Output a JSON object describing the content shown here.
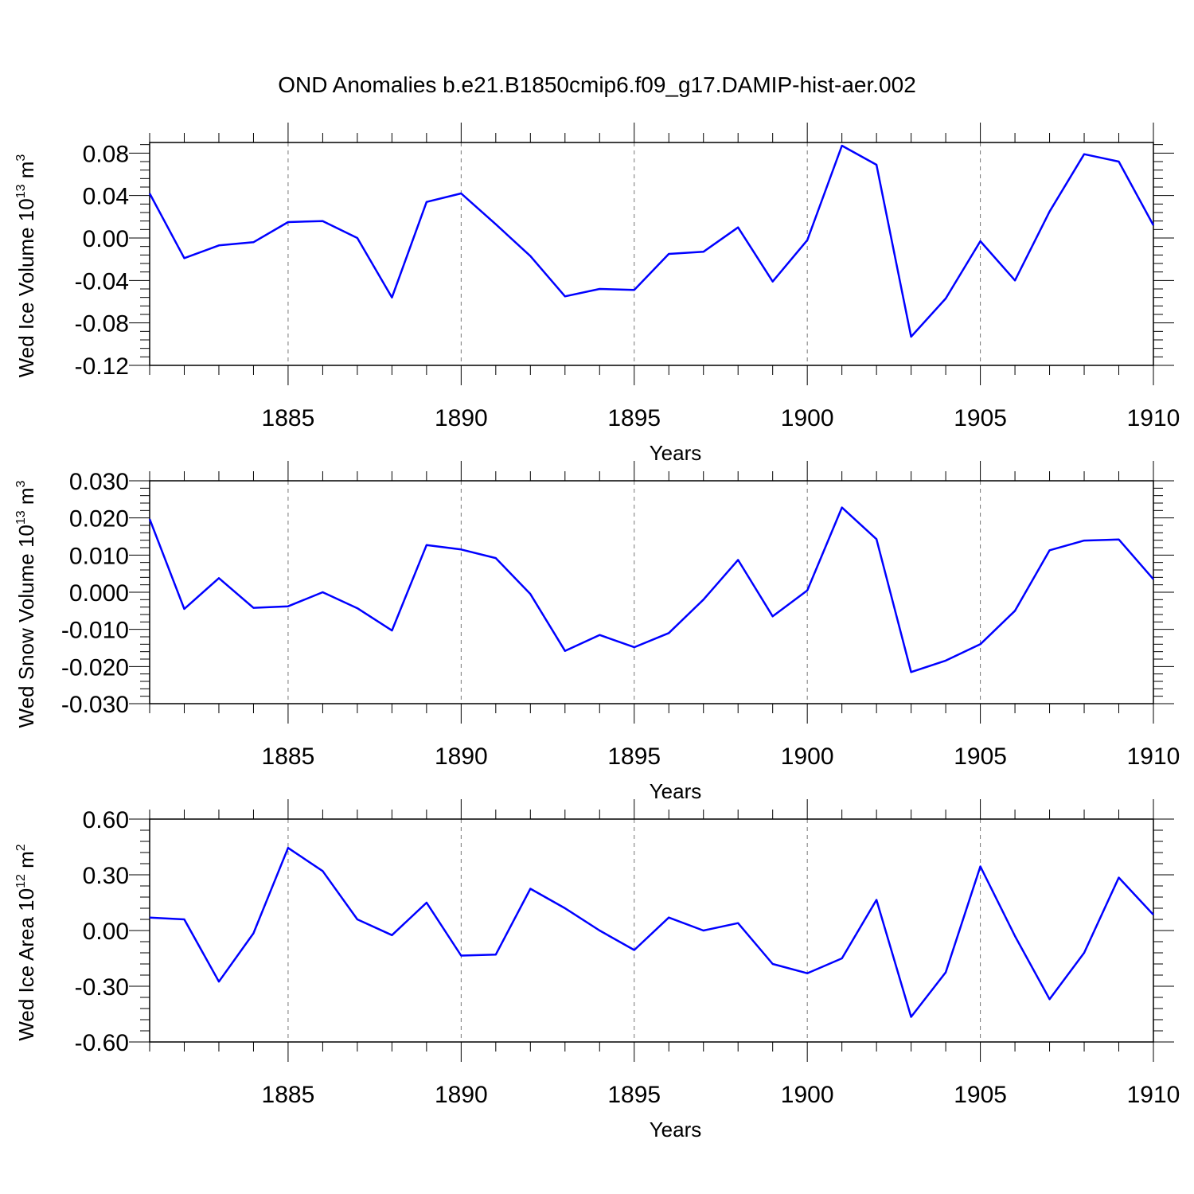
{
  "figure_title": "OND Anomalies b.e21.B1850cmip6.f09_g17.DAMIP-hist-aer.002",
  "colors": {
    "line": "#0000ff",
    "axis": "#000000",
    "grid": "#777777"
  },
  "chart_data": [
    {
      "type": "line",
      "title": "OND Anomalies b.e21.B1850cmip6.f09_g17.DAMIP-hist-aer.002",
      "ylabel": {
        "text": "Wed Ice Volume 10",
        "exp": "13",
        "unit": "m",
        "unit_exp": "3"
      },
      "xlabel": "Years",
      "xlim": [
        1881,
        1910
      ],
      "ylim": [
        -0.12,
        0.09
      ],
      "yticks": [
        -0.12,
        -0.08,
        -0.04,
        0.0,
        0.04,
        0.08
      ],
      "ytick_labels": [
        "-0.12",
        "-0.08",
        "-0.04",
        "0.00",
        "0.04",
        "0.08"
      ],
      "xticks": [
        1885,
        1890,
        1895,
        1900,
        1905,
        1910
      ],
      "xtick_labels": [
        "1885",
        "1890",
        "1895",
        "1900",
        "1905",
        "1910"
      ],
      "x": [
        1881,
        1882,
        1883,
        1884,
        1885,
        1886,
        1887,
        1888,
        1889,
        1890,
        1891,
        1892,
        1893,
        1894,
        1895,
        1896,
        1897,
        1898,
        1899,
        1900,
        1901,
        1902,
        1903,
        1904,
        1905,
        1906,
        1907,
        1908,
        1909,
        1910
      ],
      "values": [
        0.042,
        -0.019,
        -0.007,
        -0.004,
        0.015,
        0.016,
        0.0,
        -0.056,
        0.034,
        0.042,
        0.013,
        -0.017,
        -0.055,
        -0.048,
        -0.049,
        -0.015,
        -0.013,
        0.01,
        -0.041,
        -0.002,
        0.087,
        0.069,
        -0.093,
        -0.057,
        -0.003,
        -0.04,
        0.025,
        0.079,
        0.072,
        0.012
      ]
    },
    {
      "type": "line",
      "ylabel": {
        "text": "Wed Snow Volume 10",
        "exp": "13",
        "unit": "m",
        "unit_exp": "3"
      },
      "xlabel": "Years",
      "xlim": [
        1881,
        1910
      ],
      "ylim": [
        -0.03,
        0.03
      ],
      "yticks": [
        -0.03,
        -0.02,
        -0.01,
        0.0,
        0.01,
        0.02,
        0.03
      ],
      "ytick_labels": [
        "-0.030",
        "-0.020",
        "-0.010",
        "0.000",
        "0.010",
        "0.020",
        "0.030"
      ],
      "xticks": [
        1885,
        1890,
        1895,
        1900,
        1905,
        1910
      ],
      "xtick_labels": [
        "1885",
        "1890",
        "1895",
        "1900",
        "1905",
        "1910"
      ],
      "x": [
        1881,
        1882,
        1883,
        1884,
        1885,
        1886,
        1887,
        1888,
        1889,
        1890,
        1891,
        1892,
        1893,
        1894,
        1895,
        1896,
        1897,
        1898,
        1899,
        1900,
        1901,
        1902,
        1903,
        1904,
        1905,
        1906,
        1907,
        1908,
        1909,
        1910
      ],
      "values": [
        0.0197,
        -0.0045,
        0.0038,
        -0.0042,
        -0.0038,
        0.0,
        -0.0043,
        -0.0103,
        0.0127,
        0.0115,
        0.0092,
        -0.0005,
        -0.0158,
        -0.0115,
        -0.0148,
        -0.011,
        -0.002,
        0.0087,
        -0.0065,
        0.0005,
        0.0228,
        0.0143,
        -0.0215,
        -0.0184,
        -0.014,
        -0.005,
        0.0113,
        0.0139,
        0.0142,
        0.0035
      ]
    },
    {
      "type": "line",
      "ylabel": {
        "text": "Wed Ice Area 10",
        "exp": "12",
        "unit": "m",
        "unit_exp": "2"
      },
      "xlabel": "Years",
      "xlim": [
        1881,
        1910
      ],
      "ylim": [
        -0.6,
        0.6
      ],
      "yticks": [
        -0.6,
        -0.3,
        0.0,
        0.3,
        0.6
      ],
      "ytick_labels": [
        "-0.60",
        "-0.30",
        "0.00",
        "0.30",
        "0.60"
      ],
      "xticks": [
        1885,
        1890,
        1895,
        1900,
        1905,
        1910
      ],
      "xtick_labels": [
        "1885",
        "1890",
        "1895",
        "1900",
        "1905",
        "1910"
      ],
      "x": [
        1881,
        1882,
        1883,
        1884,
        1885,
        1886,
        1887,
        1888,
        1889,
        1890,
        1891,
        1892,
        1893,
        1894,
        1895,
        1896,
        1897,
        1898,
        1899,
        1900,
        1901,
        1902,
        1903,
        1904,
        1905,
        1906,
        1907,
        1908,
        1909,
        1910
      ],
      "values": [
        0.07,
        0.06,
        -0.275,
        -0.015,
        0.445,
        0.32,
        0.06,
        -0.025,
        0.15,
        -0.135,
        -0.13,
        0.225,
        0.12,
        0.0,
        -0.105,
        0.07,
        0.0,
        0.04,
        -0.18,
        -0.23,
        -0.15,
        0.165,
        -0.465,
        -0.225,
        0.345,
        -0.03,
        -0.37,
        -0.12,
        0.285,
        0.085
      ]
    }
  ]
}
